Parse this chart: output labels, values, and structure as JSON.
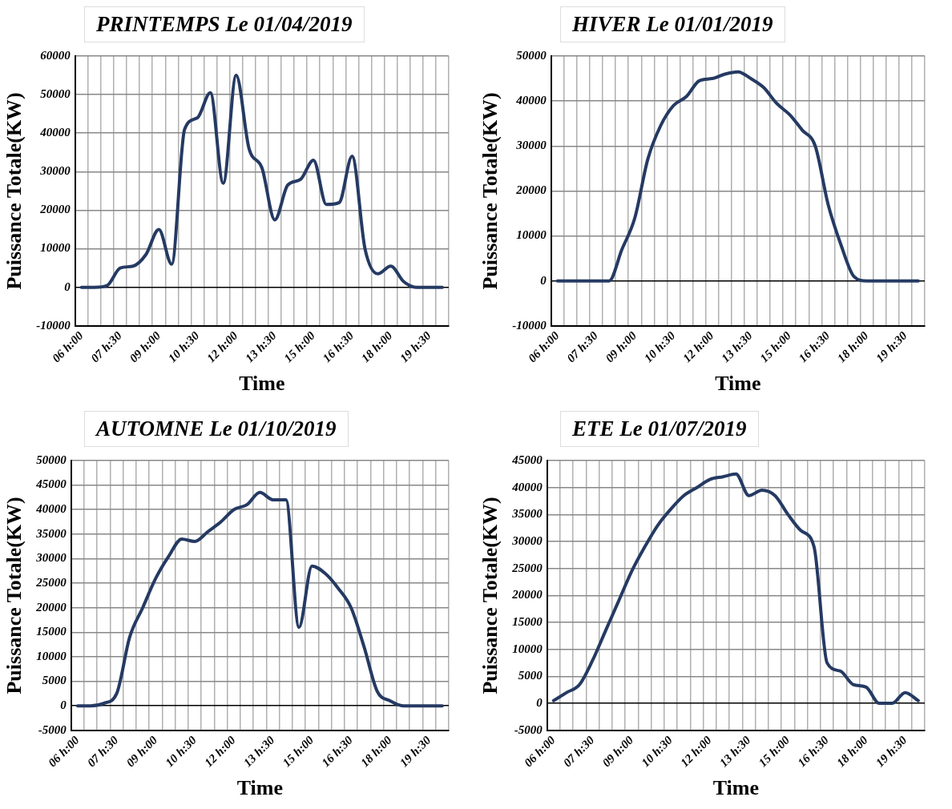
{
  "chart_data": [
    {
      "type": "line",
      "title": "PRINTEMPS Le 01/04/2019",
      "xlabel": "Time",
      "ylabel": "Puissance Totale(KW)",
      "categories": [
        "06 h:00",
        null,
        null,
        "07 h:30",
        null,
        null,
        "09 h:00",
        null,
        null,
        "10 h:30",
        null,
        null,
        "12 h:00",
        null,
        null,
        "13 h:30",
        null,
        null,
        "15 h:00",
        null,
        null,
        "16 h:30",
        null,
        null,
        "18 h:00",
        null,
        null,
        "19 h:30",
        null
      ],
      "series": [
        {
          "color": "#253a63",
          "values": [
            0,
            0,
            500,
            5000,
            5500,
            8500,
            15000,
            6000,
            41000,
            44000,
            50500,
            27000,
            55000,
            36000,
            31000,
            17500,
            26500,
            28000,
            33000,
            21500,
            22000,
            34000,
            10000,
            3500,
            5500,
            1500,
            0,
            0,
            0
          ]
        }
      ],
      "ylim": [
        -10000,
        60000
      ],
      "yticks": [
        -10000,
        0,
        10000,
        20000,
        30000,
        40000,
        50000,
        60000
      ],
      "grid": true
    },
    {
      "type": "line",
      "title": "HIVER Le 01/01/2019",
      "xlabel": "Time",
      "ylabel": "Puissance Totale(KW)",
      "categories": [
        "06 h:00",
        null,
        null,
        "07 h:30",
        null,
        null,
        "09 h:00",
        null,
        null,
        "10 h:30",
        null,
        null,
        "12 h:00",
        null,
        null,
        "13 h:30",
        null,
        null,
        "15 h:00",
        null,
        null,
        "16 h:30",
        null,
        null,
        "18 h:00",
        null,
        null,
        "19 h:30",
        null
      ],
      "series": [
        {
          "color": "#253a63",
          "values": [
            0,
            0,
            0,
            0,
            0,
            7000,
            14000,
            27000,
            34500,
            39000,
            41000,
            44500,
            45000,
            46000,
            46500,
            45000,
            43000,
            39500,
            37000,
            33500,
            30000,
            17000,
            8000,
            1000,
            0,
            0,
            0,
            0,
            0
          ]
        }
      ],
      "ylim": [
        -10000,
        50000
      ],
      "yticks": [
        -10000,
        0,
        10000,
        20000,
        30000,
        40000,
        50000
      ],
      "grid": true
    },
    {
      "type": "line",
      "title": "AUTOMNE Le 01/10/2019",
      "xlabel": "Time",
      "ylabel": "Puissance Totale(KW)",
      "categories": [
        "06 h:00",
        null,
        null,
        "07 h:30",
        null,
        null,
        "09 h:00",
        null,
        null,
        "10 h:30",
        null,
        null,
        "12 h:00",
        null,
        null,
        "13 h:30",
        null,
        null,
        "15 h:00",
        null,
        null,
        "16 h:30",
        null,
        null,
        "18 h:00",
        null,
        null,
        "19 h:30",
        null
      ],
      "series": [
        {
          "color": "#253a63",
          "values": [
            0,
            0,
            500,
            2500,
            14000,
            20000,
            26000,
            30500,
            34000,
            33500,
            35500,
            37500,
            40000,
            41000,
            43500,
            42000,
            42000,
            16000,
            28500,
            27000,
            24000,
            20000,
            12000,
            3000,
            1000,
            0,
            0,
            0,
            0
          ]
        }
      ],
      "ylim": [
        -5000,
        50000
      ],
      "yticks": [
        -5000,
        0,
        5000,
        10000,
        15000,
        20000,
        25000,
        30000,
        35000,
        40000,
        45000,
        50000
      ],
      "grid": true
    },
    {
      "type": "line",
      "title": "ETE Le 01/07/2019",
      "xlabel": "Time",
      "ylabel": "Puissance Totale(KW)",
      "categories": [
        "06 h:00",
        null,
        null,
        "07 h:30",
        null,
        null,
        "09 h:00",
        null,
        null,
        "10 h:30",
        null,
        null,
        "12 h:00",
        null,
        null,
        "13 h:30",
        null,
        null,
        "15 h:00",
        null,
        null,
        "16 h:30",
        null,
        null,
        "18 h:00",
        null,
        null,
        "19 h:30",
        null
      ],
      "series": [
        {
          "color": "#253a63",
          "values": [
            500,
            2000,
            3500,
            8000,
            13500,
            19000,
            24500,
            29000,
            33000,
            36000,
            38500,
            40000,
            41500,
            42000,
            42500,
            38500,
            39500,
            38500,
            35000,
            32000,
            29000,
            7500,
            6000,
            3500,
            3000,
            0,
            0,
            2000,
            500
          ]
        }
      ],
      "ylim": [
        -5000,
        45000
      ],
      "yticks": [
        -5000,
        0,
        5000,
        10000,
        15000,
        20000,
        25000,
        30000,
        35000,
        40000,
        45000
      ],
      "grid": true
    }
  ]
}
